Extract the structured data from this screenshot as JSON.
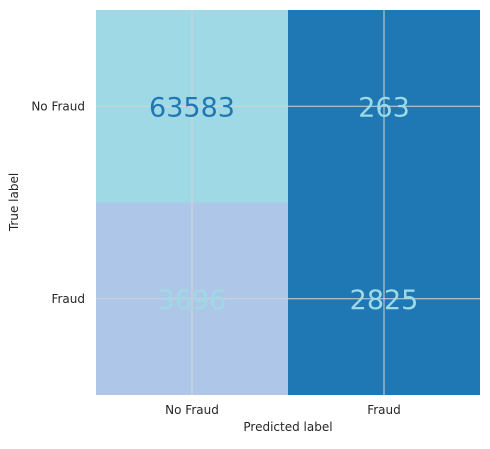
{
  "chart_data": {
    "type": "heatmap",
    "title": "",
    "xlabel": "Predicted label",
    "ylabel": "True label",
    "x_categories": [
      "No Fraud",
      "Fraud"
    ],
    "y_categories": [
      "No Fraud",
      "Fraud"
    ],
    "values": [
      [
        63583,
        263
      ],
      [
        3696,
        2825
      ]
    ],
    "cell_colors": [
      [
        "#9ed9e5",
        "#1f77b4"
      ],
      [
        "#aec7e8",
        "#1f77b4"
      ]
    ],
    "text_colors": [
      [
        "#1f77b4",
        "#9edae5"
      ],
      [
        "#9edae5",
        "#9edae5"
      ]
    ],
    "grid": true
  }
}
